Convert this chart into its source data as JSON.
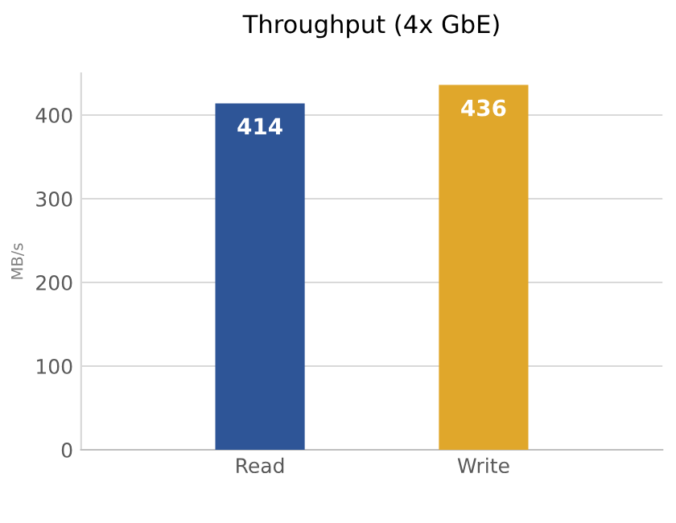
{
  "chart_data": {
    "type": "bar",
    "title": "Throughput (4x GbE)",
    "ylabel": "MB/s",
    "categories": [
      "Read",
      "Write"
    ],
    "values": [
      414,
      436
    ],
    "colors": [
      "#2e5597",
      "#e0a72b"
    ],
    "ylim": [
      0,
      450
    ],
    "yticks": [
      0,
      100,
      200,
      300,
      400
    ],
    "grid": "y",
    "data_labels": true
  }
}
